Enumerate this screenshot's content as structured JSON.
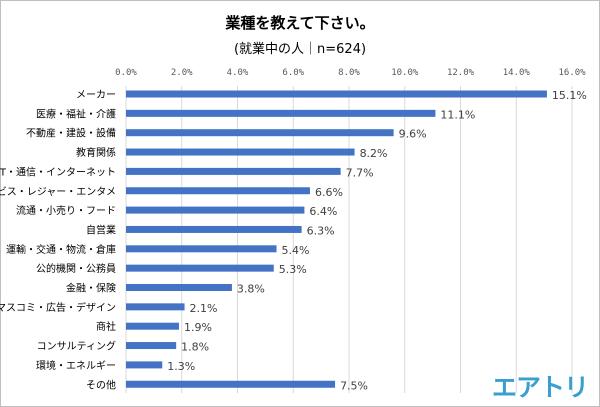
{
  "chart_data": {
    "type": "bar",
    "orientation": "horizontal",
    "title": "業種を教えて下さい。",
    "subtitle": "(就業中の人｜n=624)",
    "categories": [
      "メーカー",
      "医療・福祉・介護",
      "不動産・建設・設備",
      "教育関係",
      "IT・通信・インターネット",
      "サービス・レジャー・エンタメ",
      "流通・小売り・フード",
      "自営業",
      "運輸・交通・物流・倉庫",
      "公的機関・公務員",
      "金融・保険",
      "マスコミ・広告・デザイン",
      "商社",
      "コンサルティング",
      "環境・エネルギー",
      "その他"
    ],
    "values": [
      15.1,
      11.1,
      9.6,
      8.2,
      7.7,
      6.6,
      6.4,
      6.3,
      5.4,
      5.3,
      3.8,
      2.1,
      1.9,
      1.8,
      1.3,
      7.5
    ],
    "data_labels": [
      "15.1%",
      "11.1%",
      "9.6%",
      "8.2%",
      "7.7%",
      "6.6%",
      "6.4%",
      "6.3%",
      "5.4%",
      "5.3%",
      "3.8%",
      "2.1%",
      "1.9%",
      "1.8%",
      "1.3%",
      "7.5%"
    ],
    "xlim": [
      0,
      16
    ],
    "ticks": [
      0,
      2,
      4,
      6,
      8,
      10,
      12,
      14,
      16
    ],
    "tick_labels": [
      "0.0%",
      "2.0%",
      "4.0%",
      "6.0%",
      "8.0%",
      "10.0%",
      "12.0%",
      "14.0%",
      "16.0%"
    ],
    "axis_position": "top",
    "grid": true,
    "bar_color": "#4472c4"
  },
  "logo": {
    "text": "エアトリ",
    "color": "#3a9fd0"
  }
}
